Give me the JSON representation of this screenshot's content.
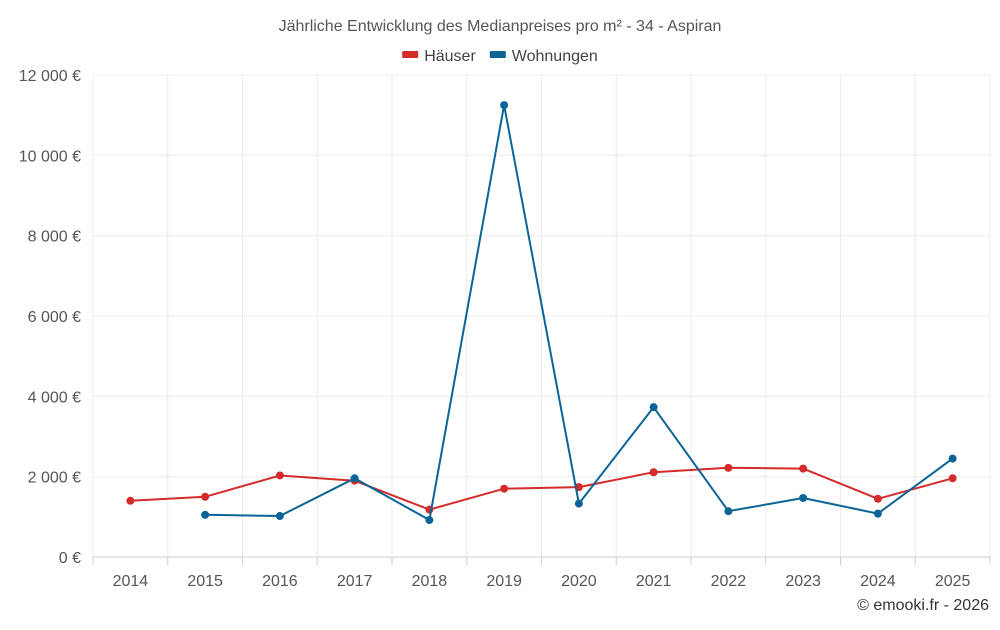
{
  "chart_data": {
    "type": "line",
    "title": "Jährliche Entwicklung des Medianpreises pro m² - 34 - Aspiran",
    "categories": [
      "2014",
      "2015",
      "2016",
      "2017",
      "2018",
      "2019",
      "2020",
      "2021",
      "2022",
      "2023",
      "2024",
      "2025"
    ],
    "series": [
      {
        "name": "Häuser",
        "color": "#d62b2b",
        "values": [
          1400,
          1500,
          2030,
          1900,
          1180,
          1700,
          1740,
          2110,
          2220,
          2200,
          1450,
          1960
        ]
      },
      {
        "name": "Wohnungen",
        "color": "#0a6496",
        "values": [
          null,
          1050,
          1020,
          1960,
          920,
          11250,
          1330,
          3730,
          1140,
          1470,
          1080,
          2450
        ]
      }
    ],
    "ylim": [
      0,
      12000
    ],
    "yticks": [
      0,
      2000,
      4000,
      6000,
      8000,
      10000,
      12000
    ],
    "ytick_labels": [
      "0 €",
      "2 000 €",
      "4 000 €",
      "6 000 €",
      "8 000 €",
      "10 000 €",
      "12 000 €"
    ],
    "xlabel": "",
    "ylabel": "",
    "grid": true,
    "legend_position": "top-center",
    "credit": "© emooki.fr - 2026"
  }
}
